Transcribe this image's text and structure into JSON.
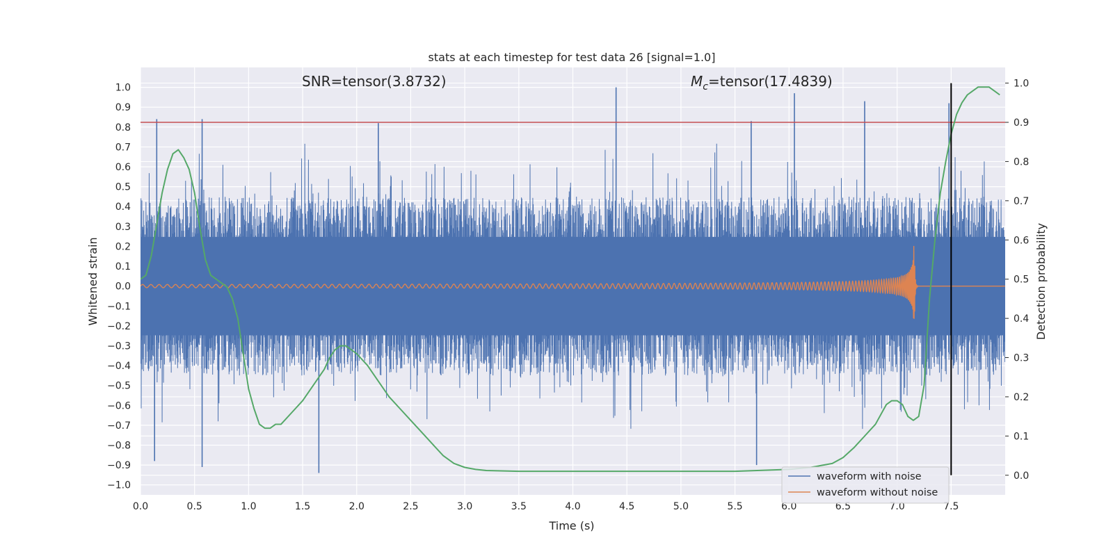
{
  "chart_data": {
    "type": "line",
    "title": "stats at each timestep for test data 26 [signal=1.0]",
    "xlabel": "Time (s)",
    "ylabel_left": "Whitened strain",
    "ylabel_right": "Detection probability",
    "xlim": [
      0.0,
      8.0
    ],
    "ylim_left": [
      -1.05,
      1.1
    ],
    "ylim_right": [
      -0.05,
      1.04
    ],
    "x_ticks": [
      "0.0",
      "0.5",
      "1.0",
      "1.5",
      "2.0",
      "2.5",
      "3.0",
      "3.5",
      "4.0",
      "4.5",
      "5.0",
      "5.5",
      "6.0",
      "6.5",
      "7.0",
      "7.5"
    ],
    "y_left_ticks": [
      "1.0",
      "0.9",
      "0.8",
      "0.7",
      "0.6",
      "0.5",
      "0.4",
      "0.3",
      "0.2",
      "0.1",
      "0.0",
      "−0.1",
      "−0.2",
      "−0.3",
      "−0.4",
      "−0.5",
      "−0.6",
      "−0.7",
      "−0.8",
      "−0.9",
      "−1.0"
    ],
    "y_right_ticks": [
      "1.0",
      "0.9",
      "0.8",
      "0.7",
      "0.6",
      "0.5",
      "0.4",
      "0.3",
      "0.2",
      "0.1",
      "0.0"
    ],
    "grid": true,
    "legend_position": "lower-right",
    "annotations": {
      "snr": "SNR=tensor(3.8732)",
      "mc_symbol": "M",
      "mc_subscript": "c",
      "mc_value": "=tensor(17.4839)"
    },
    "threshold_line": {
      "axis": "right",
      "y": 0.9,
      "color": "#c44e52"
    },
    "vertical_marker": {
      "x": 7.5,
      "ymin": 0.0,
      "ymax": 1.0,
      "color": "#000000"
    },
    "series": [
      {
        "name": "waveform with noise",
        "axis": "left",
        "color": "#4c72b0",
        "kind": "noise",
        "noise_envelope": 0.45,
        "notable_spikes": [
          {
            "x": 0.15,
            "y": 0.84
          },
          {
            "x": 0.57,
            "y": 0.84
          },
          {
            "x": 2.2,
            "y": 0.82
          },
          {
            "x": 4.4,
            "y": 1.0
          },
          {
            "x": 5.65,
            "y": 0.83
          },
          {
            "x": 6.05,
            "y": 0.97
          },
          {
            "x": 6.7,
            "y": 0.93
          },
          {
            "x": 7.48,
            "y": 0.92
          },
          {
            "x": 1.65,
            "y": -0.94
          },
          {
            "x": 0.57,
            "y": -0.91
          },
          {
            "x": 5.7,
            "y": -0.9
          },
          {
            "x": 0.13,
            "y": -0.88
          }
        ]
      },
      {
        "name": "waveform without noise",
        "axis": "left",
        "color": "#dd8452",
        "kind": "chirp",
        "start_amplitude": 0.008,
        "peak_amplitude": 0.21,
        "merger_time": 7.16
      },
      {
        "name": "",
        "axis": "right",
        "color": "#55a868",
        "kind": "line",
        "x": [
          0.0,
          0.05,
          0.1,
          0.15,
          0.2,
          0.25,
          0.3,
          0.35,
          0.4,
          0.45,
          0.5,
          0.55,
          0.6,
          0.65,
          0.7,
          0.8,
          0.85,
          0.9,
          0.95,
          1.0,
          1.05,
          1.1,
          1.15,
          1.2,
          1.25,
          1.3,
          1.4,
          1.5,
          1.6,
          1.7,
          1.75,
          1.8,
          1.85,
          1.9,
          1.95,
          2.0,
          2.1,
          2.2,
          2.3,
          2.4,
          2.5,
          2.6,
          2.7,
          2.8,
          2.9,
          3.0,
          3.1,
          3.2,
          3.5,
          4.0,
          4.5,
          5.0,
          5.5,
          6.0,
          6.2,
          6.4,
          6.5,
          6.6,
          6.7,
          6.8,
          6.9,
          6.95,
          7.0,
          7.05,
          7.1,
          7.15,
          7.2,
          7.25,
          7.3,
          7.35,
          7.4,
          7.45,
          7.5,
          7.55,
          7.6,
          7.65,
          7.7,
          7.75,
          7.8,
          7.85,
          7.9,
          7.95
        ],
        "values": [
          0.5,
          0.51,
          0.56,
          0.64,
          0.72,
          0.78,
          0.82,
          0.83,
          0.81,
          0.78,
          0.72,
          0.63,
          0.55,
          0.51,
          0.5,
          0.48,
          0.45,
          0.4,
          0.31,
          0.22,
          0.17,
          0.13,
          0.12,
          0.12,
          0.13,
          0.13,
          0.16,
          0.19,
          0.23,
          0.27,
          0.3,
          0.32,
          0.33,
          0.33,
          0.32,
          0.31,
          0.28,
          0.24,
          0.2,
          0.17,
          0.14,
          0.11,
          0.08,
          0.05,
          0.03,
          0.02,
          0.015,
          0.012,
          0.01,
          0.01,
          0.01,
          0.01,
          0.01,
          0.015,
          0.02,
          0.03,
          0.045,
          0.07,
          0.1,
          0.13,
          0.18,
          0.19,
          0.19,
          0.18,
          0.15,
          0.14,
          0.15,
          0.23,
          0.45,
          0.6,
          0.72,
          0.8,
          0.87,
          0.92,
          0.95,
          0.97,
          0.98,
          0.99,
          0.99,
          0.99,
          0.98,
          0.97
        ]
      }
    ]
  }
}
